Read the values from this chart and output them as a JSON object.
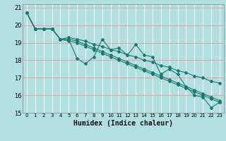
{
  "title": "",
  "xlabel": "Humidex (Indice chaleur)",
  "background_color": "#b2e0e0",
  "line_color": "#1a7a6e",
  "xlim": [
    -0.5,
    23.5
  ],
  "ylim": [
    15,
    21.2
  ],
  "xticks": [
    0,
    1,
    2,
    3,
    4,
    5,
    6,
    7,
    8,
    9,
    10,
    11,
    12,
    13,
    14,
    15,
    16,
    17,
    18,
    19,
    20,
    21,
    22,
    23
  ],
  "yticks": [
    15,
    16,
    17,
    18,
    19,
    20,
    21
  ],
  "x": [
    0,
    1,
    2,
    3,
    4,
    5,
    6,
    7,
    8,
    9,
    10,
    11,
    12,
    13,
    14,
    15,
    16,
    17,
    18,
    19,
    20,
    21,
    22,
    23
  ],
  "series": [
    [
      20.7,
      19.8,
      19.8,
      19.8,
      19.2,
      19.2,
      18.1,
      17.8,
      18.2,
      19.2,
      18.6,
      18.7,
      18.3,
      18.9,
      18.3,
      18.2,
      17.2,
      17.5,
      17.2,
      16.5,
      16.0,
      15.9,
      15.3,
      15.6
    ],
    [
      20.7,
      19.8,
      19.8,
      19.8,
      19.2,
      19.3,
      19.2,
      19.1,
      18.9,
      18.8,
      18.6,
      18.5,
      18.3,
      18.2,
      18.0,
      17.9,
      17.7,
      17.6,
      17.4,
      17.3,
      17.1,
      17.0,
      16.8,
      16.7
    ],
    [
      20.7,
      19.8,
      19.8,
      19.8,
      19.2,
      19.2,
      19.1,
      18.9,
      18.7,
      18.5,
      18.3,
      18.1,
      17.9,
      17.7,
      17.5,
      17.3,
      17.1,
      16.9,
      16.7,
      16.5,
      16.3,
      16.1,
      15.9,
      15.7
    ],
    [
      20.7,
      19.8,
      19.8,
      19.8,
      19.2,
      19.1,
      19.0,
      18.8,
      18.6,
      18.4,
      18.2,
      18.0,
      17.8,
      17.6,
      17.4,
      17.2,
      17.0,
      16.8,
      16.6,
      16.4,
      16.2,
      16.0,
      15.8,
      15.6
    ]
  ],
  "vgrid_color": "#ffffff",
  "hgrid_color": "#e8a0a0",
  "xlabel_fontsize": 7,
  "ytick_fontsize": 6,
  "xtick_fontsize": 5
}
